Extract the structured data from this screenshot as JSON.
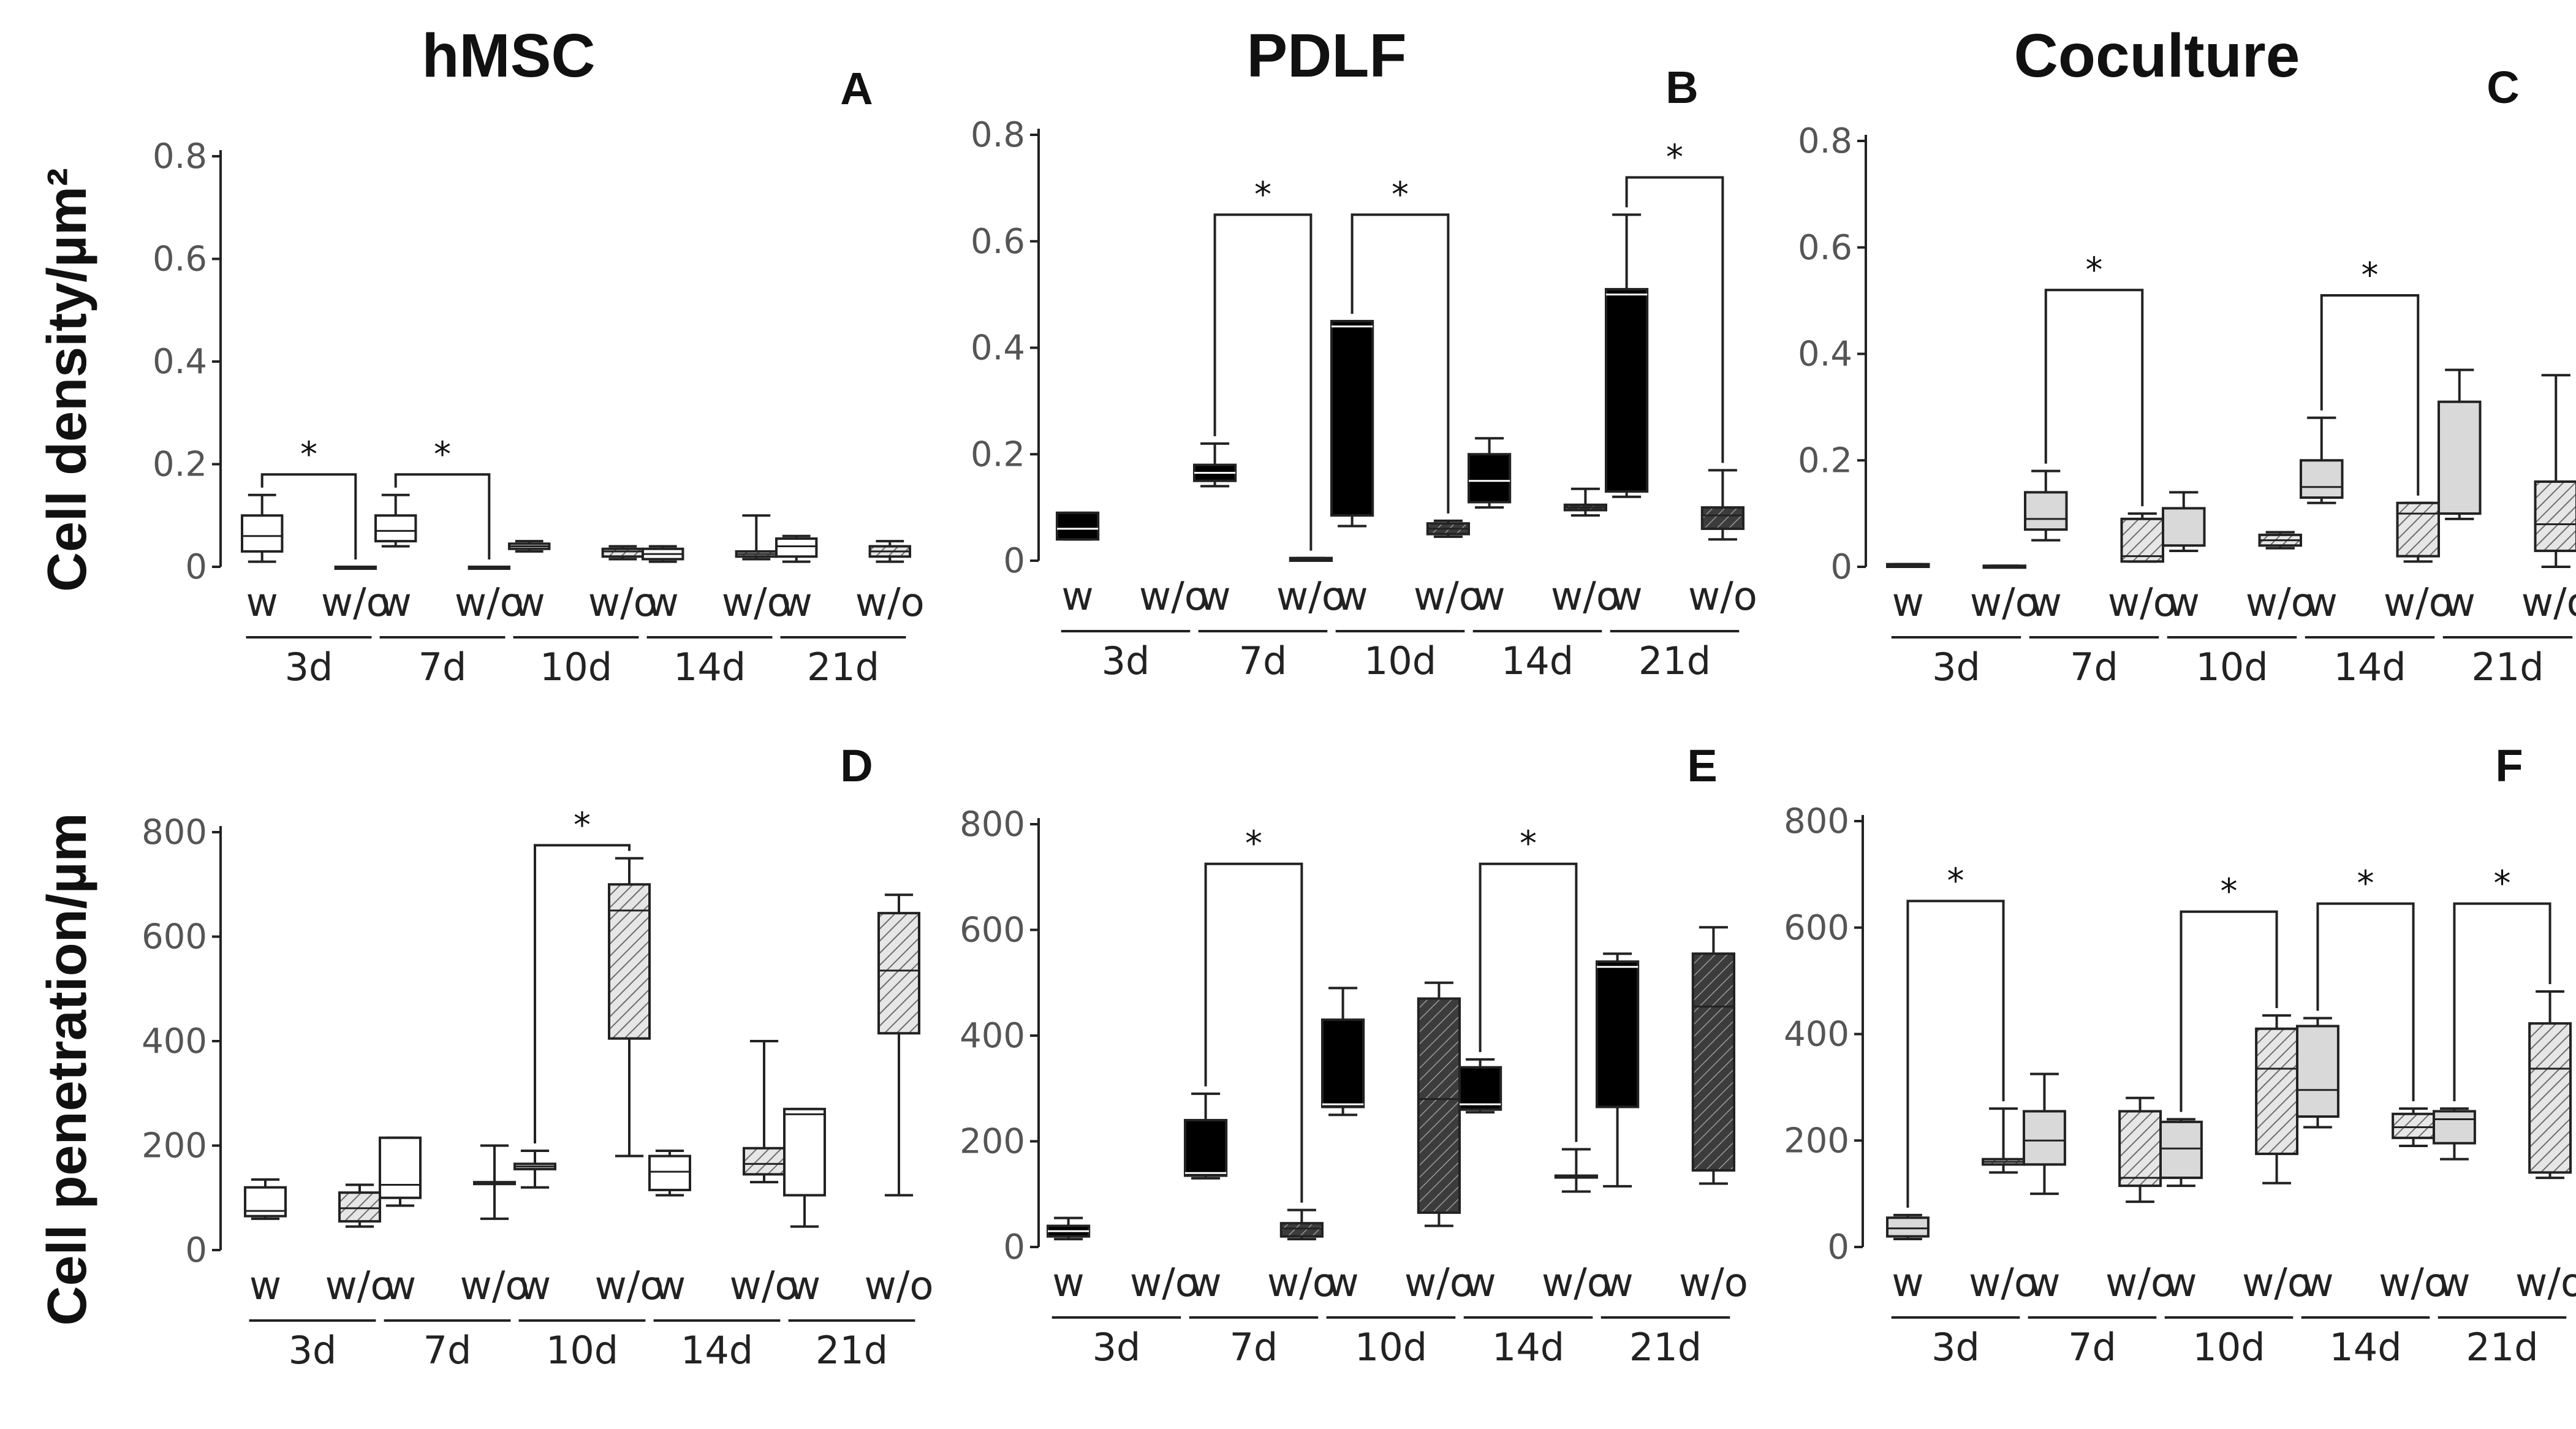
{
  "figure": {
    "column_titles": [
      "hMSC",
      "PDLF",
      "Coculture"
    ],
    "row_ylabels": [
      "Cell density/µm²",
      "Cell penetration/µm"
    ],
    "colors": {
      "axis": "#222222",
      "hmsc_w": "#ffffff",
      "pdlf_w": "#000000",
      "coc_w": "#d9d9d9",
      "hatch_light": "#e6e6e6",
      "hatch_dark": "#404040"
    }
  },
  "chart_data": [
    {
      "panel": "A",
      "type": "box",
      "title": "hMSC",
      "ylabel": "Cell density/µm²",
      "yticks": [
        0,
        0.2,
        0.4,
        0.6,
        0.8
      ],
      "ytick_labels": [
        "0",
        "0.2",
        "0.4",
        "0.6",
        "0.8"
      ],
      "ylim": [
        0,
        0.8
      ],
      "groups": [
        "3d",
        "7d",
        "10d",
        "14d",
        "21d"
      ],
      "categories": [
        "w",
        "w/o"
      ],
      "boxes": [
        {
          "group": "3d",
          "cond": "w",
          "min": 0.01,
          "q1": 0.03,
          "med": 0.06,
          "q3": 0.1,
          "max": 0.14
        },
        {
          "group": "3d",
          "cond": "w/o",
          "min": 0.0,
          "q1": 0.0,
          "med": 0.0,
          "q3": 0.0,
          "max": 0.0
        },
        {
          "group": "7d",
          "cond": "w",
          "min": 0.04,
          "q1": 0.05,
          "med": 0.07,
          "q3": 0.1,
          "max": 0.14
        },
        {
          "group": "7d",
          "cond": "w/o",
          "min": 0.0,
          "q1": 0.0,
          "med": 0.0,
          "q3": 0.0,
          "max": 0.0
        },
        {
          "group": "10d",
          "cond": "w",
          "min": 0.03,
          "q1": 0.035,
          "med": 0.04,
          "q3": 0.045,
          "max": 0.05
        },
        {
          "group": "10d",
          "cond": "w/o",
          "min": 0.015,
          "q1": 0.02,
          "med": 0.03,
          "q3": 0.035,
          "max": 0.04
        },
        {
          "group": "14d",
          "cond": "w",
          "min": 0.01,
          "q1": 0.015,
          "med": 0.025,
          "q3": 0.035,
          "max": 0.04
        },
        {
          "group": "14d",
          "cond": "w/o",
          "min": 0.015,
          "q1": 0.02,
          "med": 0.025,
          "q3": 0.03,
          "max": 0.1
        },
        {
          "group": "21d",
          "cond": "w",
          "min": 0.01,
          "q1": 0.02,
          "med": 0.04,
          "q3": 0.055,
          "max": 0.06
        },
        {
          "group": "21d",
          "cond": "w/o",
          "min": 0.01,
          "q1": 0.02,
          "med": 0.03,
          "q3": 0.04,
          "max": 0.05
        }
      ],
      "significance": [
        {
          "group": "3d",
          "left_top": 0.14,
          "right_top": 0.0,
          "bar": 0.18,
          "label": "*"
        },
        {
          "group": "7d",
          "left_top": 0.14,
          "right_top": 0.0,
          "bar": 0.18,
          "label": "*"
        }
      ]
    },
    {
      "panel": "B",
      "type": "box",
      "title": "PDLF",
      "ylabel": "Cell density/µm²",
      "yticks": [
        0,
        0.2,
        0.4,
        0.6,
        0.8
      ],
      "ytick_labels": [
        "0",
        "0.2",
        "0.4",
        "0.6",
        "0.8"
      ],
      "ylim": [
        0,
        0.8
      ],
      "groups": [
        "3d",
        "7d",
        "10d",
        "14d",
        "21d"
      ],
      "categories": [
        "w",
        "w/o"
      ],
      "boxes": [
        {
          "group": "3d",
          "cond": "w",
          "min": 0.04,
          "q1": 0.04,
          "med": 0.06,
          "q3": 0.09,
          "max": 0.09
        },
        {
          "group": "7d",
          "cond": "w",
          "min": 0.14,
          "q1": 0.15,
          "med": 0.165,
          "q3": 0.18,
          "max": 0.22
        },
        {
          "group": "7d",
          "cond": "w/o",
          "min": 0.0,
          "q1": 0.0,
          "med": 0.002,
          "q3": 0.005,
          "max": 0.005
        },
        {
          "group": "10d",
          "cond": "w",
          "min": 0.065,
          "q1": 0.085,
          "med": 0.44,
          "q3": 0.45,
          "max": 0.45
        },
        {
          "group": "10d",
          "cond": "w/o",
          "min": 0.045,
          "q1": 0.05,
          "med": 0.06,
          "q3": 0.07,
          "max": 0.075
        },
        {
          "group": "14d",
          "cond": "w",
          "min": 0.1,
          "q1": 0.11,
          "med": 0.15,
          "q3": 0.2,
          "max": 0.23
        },
        {
          "group": "14d",
          "cond": "w/o",
          "min": 0.085,
          "q1": 0.095,
          "med": 0.1,
          "q3": 0.105,
          "max": 0.135
        },
        {
          "group": "21d",
          "cond": "w",
          "min": 0.12,
          "q1": 0.13,
          "med": 0.5,
          "q3": 0.51,
          "max": 0.65
        },
        {
          "group": "21d",
          "cond": "w/o",
          "min": 0.04,
          "q1": 0.06,
          "med": 0.085,
          "q3": 0.1,
          "max": 0.17
        }
      ],
      "significance": [
        {
          "group": "7d",
          "left_top": 0.22,
          "right_top": 0.005,
          "bar": 0.65,
          "label": "*"
        },
        {
          "group": "10d",
          "left_top": 0.45,
          "right_top": 0.075,
          "bar": 0.65,
          "label": "*"
        },
        {
          "group": "21d",
          "left_top": 0.65,
          "right_top": 0.17,
          "bar": 0.72,
          "label": "*"
        }
      ]
    },
    {
      "panel": "C",
      "type": "box",
      "title": "Coculture",
      "ylabel": "Cell density/µm²",
      "yticks": [
        0,
        0.2,
        0.4,
        0.6,
        0.8
      ],
      "ytick_labels": [
        "0",
        "0.2",
        "0.4",
        "0.6",
        "0.8"
      ],
      "ylim": [
        0,
        0.8
      ],
      "groups": [
        "3d",
        "7d",
        "10d",
        "14d",
        "21d"
      ],
      "categories": [
        "w",
        "w/o"
      ],
      "boxes": [
        {
          "group": "3d",
          "cond": "w",
          "min": 0.0,
          "q1": 0.0,
          "med": 0.002,
          "q3": 0.005,
          "max": 0.005
        },
        {
          "group": "3d",
          "cond": "w/o",
          "min": 0.0,
          "q1": 0.0,
          "med": 0.0,
          "q3": 0.002,
          "max": 0.002
        },
        {
          "group": "7d",
          "cond": "w",
          "min": 0.05,
          "q1": 0.07,
          "med": 0.09,
          "q3": 0.14,
          "max": 0.18
        },
        {
          "group": "7d",
          "cond": "w/o",
          "min": 0.01,
          "q1": 0.01,
          "med": 0.02,
          "q3": 0.09,
          "max": 0.1
        },
        {
          "group": "10d",
          "cond": "w",
          "min": 0.03,
          "q1": 0.04,
          "med": 0.04,
          "q3": 0.11,
          "max": 0.14
        },
        {
          "group": "10d",
          "cond": "w/o",
          "min": 0.035,
          "q1": 0.04,
          "med": 0.05,
          "q3": 0.06,
          "max": 0.065
        },
        {
          "group": "14d",
          "cond": "w",
          "min": 0.12,
          "q1": 0.13,
          "med": 0.15,
          "q3": 0.2,
          "max": 0.28
        },
        {
          "group": "14d",
          "cond": "w/o",
          "min": 0.01,
          "q1": 0.02,
          "med": 0.1,
          "q3": 0.12,
          "max": 0.12
        },
        {
          "group": "21d",
          "cond": "w",
          "min": 0.09,
          "q1": 0.1,
          "med": 0.1,
          "q3": 0.31,
          "max": 0.37
        },
        {
          "group": "21d",
          "cond": "w/o",
          "min": 0.0,
          "q1": 0.03,
          "med": 0.08,
          "q3": 0.16,
          "max": 0.36
        }
      ],
      "significance": [
        {
          "group": "7d",
          "left_top": 0.18,
          "right_top": 0.1,
          "bar": 0.52,
          "label": "*"
        },
        {
          "group": "14d",
          "left_top": 0.28,
          "right_top": 0.12,
          "bar": 0.51,
          "label": "*"
        }
      ]
    },
    {
      "panel": "D",
      "type": "box",
      "title": "",
      "ylabel": "Cell penetration/µm",
      "yticks": [
        0,
        200,
        400,
        600,
        800
      ],
      "ytick_labels": [
        "0",
        "200",
        "400",
        "600",
        "800"
      ],
      "ylim": [
        0,
        800
      ],
      "groups": [
        "3d",
        "7d",
        "10d",
        "14d",
        "21d"
      ],
      "categories": [
        "w",
        "w/o"
      ],
      "boxes": [
        {
          "group": "3d",
          "cond": "w",
          "min": 60,
          "q1": 65,
          "med": 75,
          "q3": 120,
          "max": 135
        },
        {
          "group": "3d",
          "cond": "w/o",
          "min": 45,
          "q1": 55,
          "med": 80,
          "q3": 110,
          "max": 125
        },
        {
          "group": "7d",
          "cond": "w",
          "min": 85,
          "q1": 100,
          "med": 125,
          "q3": 215,
          "max": 215
        },
        {
          "group": "7d",
          "cond": "w/o",
          "min": 60,
          "q1": 130,
          "med": 130,
          "q3": 130,
          "max": 200
        },
        {
          "group": "10d",
          "cond": "w",
          "min": 120,
          "q1": 155,
          "med": 160,
          "q3": 165,
          "max": 190
        },
        {
          "group": "10d",
          "cond": "w/o",
          "min": 180,
          "q1": 405,
          "med": 650,
          "q3": 700,
          "max": 750
        },
        {
          "group": "14d",
          "cond": "w",
          "min": 105,
          "q1": 115,
          "med": 150,
          "q3": 180,
          "max": 190
        },
        {
          "group": "14d",
          "cond": "w/o",
          "min": 130,
          "q1": 145,
          "med": 165,
          "q3": 195,
          "max": 400
        },
        {
          "group": "21d",
          "cond": "w",
          "min": 45,
          "q1": 105,
          "med": 260,
          "q3": 270,
          "max": 270
        },
        {
          "group": "21d",
          "cond": "w/o",
          "min": 105,
          "q1": 415,
          "med": 535,
          "q3": 645,
          "max": 680
        }
      ],
      "significance": [
        {
          "group": "10d",
          "left_top": 190,
          "right_top": 750,
          "bar": 775,
          "label": "*"
        }
      ]
    },
    {
      "panel": "E",
      "type": "box",
      "title": "",
      "ylabel": "Cell penetration/µm",
      "yticks": [
        0,
        200,
        400,
        600,
        800
      ],
      "ytick_labels": [
        "0",
        "200",
        "400",
        "600",
        "800"
      ],
      "ylim": [
        0,
        800
      ],
      "groups": [
        "3d",
        "7d",
        "10d",
        "14d",
        "21d"
      ],
      "categories": [
        "w",
        "w/o"
      ],
      "boxes": [
        {
          "group": "3d",
          "cond": "w",
          "min": 15,
          "q1": 20,
          "med": 30,
          "q3": 40,
          "max": 55
        },
        {
          "group": "7d",
          "cond": "w",
          "min": 130,
          "q1": 135,
          "med": 140,
          "q3": 240,
          "max": 290
        },
        {
          "group": "7d",
          "cond": "w/o",
          "min": 15,
          "q1": 20,
          "med": 35,
          "q3": 45,
          "max": 70
        },
        {
          "group": "10d",
          "cond": "w",
          "min": 250,
          "q1": 265,
          "med": 270,
          "q3": 430,
          "max": 490
        },
        {
          "group": "10d",
          "cond": "w/o",
          "min": 40,
          "q1": 65,
          "med": 280,
          "q3": 470,
          "max": 500
        },
        {
          "group": "14d",
          "cond": "w",
          "min": 255,
          "q1": 260,
          "med": 270,
          "q3": 340,
          "max": 355
        },
        {
          "group": "14d",
          "cond": "w/o",
          "min": 105,
          "q1": 135,
          "med": 135,
          "q3": 135,
          "max": 185
        },
        {
          "group": "21d",
          "cond": "w",
          "min": 115,
          "q1": 265,
          "med": 530,
          "q3": 540,
          "max": 555
        },
        {
          "group": "21d",
          "cond": "w/o",
          "min": 120,
          "q1": 145,
          "med": 455,
          "q3": 555,
          "max": 605
        }
      ],
      "significance": [
        {
          "group": "7d",
          "left_top": 290,
          "right_top": 70,
          "bar": 725,
          "label": "*"
        },
        {
          "group": "14d",
          "left_top": 355,
          "right_top": 185,
          "bar": 725,
          "label": "*"
        }
      ]
    },
    {
      "panel": "F",
      "type": "box",
      "title": "",
      "ylabel": "Cell penetration/µm",
      "yticks": [
        0,
        200,
        400,
        600,
        800
      ],
      "ytick_labels": [
        "0",
        "200",
        "400",
        "600",
        "800"
      ],
      "ylim": [
        0,
        800
      ],
      "groups": [
        "3d",
        "7d",
        "10d",
        "14d",
        "21d"
      ],
      "categories": [
        "w",
        "w/o"
      ],
      "boxes": [
        {
          "group": "3d",
          "cond": "w",
          "min": 15,
          "q1": 20,
          "med": 35,
          "q3": 55,
          "max": 60
        },
        {
          "group": "3d",
          "cond": "w/o",
          "min": 140,
          "q1": 155,
          "med": 160,
          "q3": 165,
          "max": 260
        },
        {
          "group": "7d",
          "cond": "w",
          "min": 100,
          "q1": 155,
          "med": 200,
          "q3": 255,
          "max": 325
        },
        {
          "group": "7d",
          "cond": "w/o",
          "min": 85,
          "q1": 115,
          "med": 130,
          "q3": 255,
          "max": 280
        },
        {
          "group": "10d",
          "cond": "w",
          "min": 115,
          "q1": 130,
          "med": 185,
          "q3": 235,
          "max": 240
        },
        {
          "group": "10d",
          "cond": "w/o",
          "min": 120,
          "q1": 175,
          "med": 335,
          "q3": 410,
          "max": 435
        },
        {
          "group": "14d",
          "cond": "w",
          "min": 225,
          "q1": 245,
          "med": 295,
          "q3": 415,
          "max": 430
        },
        {
          "group": "14d",
          "cond": "w/o",
          "min": 190,
          "q1": 205,
          "med": 225,
          "q3": 250,
          "max": 260
        },
        {
          "group": "21d",
          "cond": "w",
          "min": 165,
          "q1": 195,
          "med": 240,
          "q3": 255,
          "max": 260
        },
        {
          "group": "21d",
          "cond": "w/o",
          "min": 130,
          "q1": 140,
          "med": 335,
          "q3": 420,
          "max": 480
        }
      ],
      "significance": [
        {
          "group": "3d",
          "left_top": 60,
          "right_top": 260,
          "bar": 650,
          "label": "*"
        },
        {
          "group": "10d",
          "left_top": 240,
          "right_top": 435,
          "bar": 630,
          "label": "*"
        },
        {
          "group": "14d",
          "left_top": 430,
          "right_top": 260,
          "bar": 645,
          "label": "*"
        },
        {
          "group": "21d",
          "left_top": 260,
          "right_top": 480,
          "bar": 645,
          "label": "*"
        }
      ]
    }
  ]
}
